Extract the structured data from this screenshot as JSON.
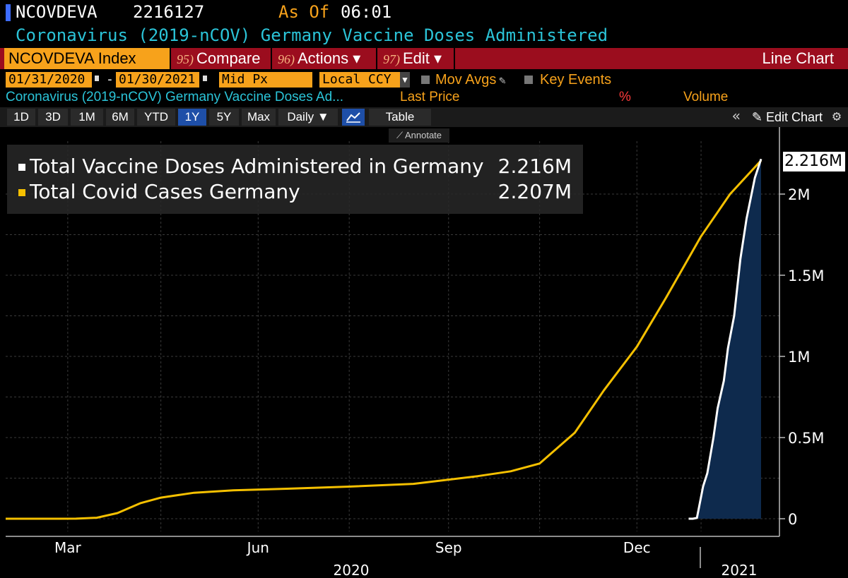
{
  "header": {
    "ticker": "NCOVDEVA",
    "last_value": "2216127",
    "as_of_label": "As Of",
    "time": "06:01",
    "subtitle": "Coronavirus (2019-nCOV) Germany Vaccine Doses Administered"
  },
  "toolbar": {
    "index_field": "NCOVDEVA Index",
    "compare": {
      "num": "95)",
      "label": "Compare"
    },
    "actions": {
      "num": "96)",
      "label": "Actions ▾"
    },
    "edit": {
      "num": "97)",
      "label": "Edit ▾"
    },
    "chart_type": "Line Chart"
  },
  "date_row": {
    "start_date": "01/31/2020",
    "dash": "-",
    "end_date": "01/30/2021",
    "price_field": "Mid Px",
    "currency": "Local CCY",
    "mov_avgs": "Mov Avgs",
    "key_events": "Key Events"
  },
  "series_header": {
    "security": "Coronavirus (2019-nCOV) Germany Vaccine Doses Ad...",
    "last_price": "Last Price",
    "pct": "%",
    "volume": "Volume"
  },
  "tabs": [
    "1D",
    "3D",
    "1M",
    "6M",
    "YTD",
    "1Y",
    "5Y",
    "Max",
    "Daily ▼",
    "",
    "Table"
  ],
  "active_tab": "1Y",
  "edit_chart": "Edit Chart",
  "annotate": "Annotate",
  "legend": [
    {
      "label": "Total Vaccine Doses Administered in Germany",
      "value": "2.216M",
      "color": "#ffffff"
    },
    {
      "label": "Total Covid Cases Germany",
      "value": "2.207M",
      "color": "#f5c000"
    }
  ],
  "last_flag": "2.216M",
  "chart_data": {
    "type": "line",
    "x_axis": {
      "ticks": [
        "Mar",
        "Jun",
        "Sep",
        "Dec"
      ],
      "years": [
        "2020",
        "2021"
      ]
    },
    "y_axis": {
      "ticks": [
        "0",
        "0.5M",
        "1M",
        "1.5M",
        "2M"
      ],
      "ylim": [
        0,
        2300000
      ]
    },
    "series": [
      {
        "name": "Total Covid Cases Germany",
        "color": "#f5c000",
        "points": [
          [
            "2020-01-31",
            0
          ],
          [
            "2020-02-25",
            0
          ],
          [
            "2020-03-05",
            500
          ],
          [
            "2020-03-15",
            6000
          ],
          [
            "2020-03-25",
            35000
          ],
          [
            "2020-04-05",
            95000
          ],
          [
            "2020-04-15",
            130000
          ],
          [
            "2020-05-01",
            160000
          ],
          [
            "2020-05-20",
            175000
          ],
          [
            "2020-06-15",
            185000
          ],
          [
            "2020-07-15",
            198000
          ],
          [
            "2020-08-15",
            215000
          ],
          [
            "2020-09-15",
            262000
          ],
          [
            "2020-10-01",
            292000
          ],
          [
            "2020-10-15",
            340000
          ],
          [
            "2020-11-01",
            530000
          ],
          [
            "2020-11-15",
            790000
          ],
          [
            "2020-12-01",
            1060000
          ],
          [
            "2020-12-15",
            1360000
          ],
          [
            "2021-01-01",
            1740000
          ],
          [
            "2021-01-15",
            2000000
          ],
          [
            "2021-01-30",
            2207000
          ]
        ]
      },
      {
        "name": "Total Vaccine Doses Administered in Germany",
        "color": "#ffffff",
        "fill": "#0e2a4d",
        "points": [
          [
            "2020-12-26",
            0
          ],
          [
            "2020-12-28",
            0
          ],
          [
            "2020-12-30",
            5000
          ],
          [
            "2021-01-02",
            200000
          ],
          [
            "2021-01-04",
            280000
          ],
          [
            "2021-01-07",
            500000
          ],
          [
            "2021-01-09",
            680000
          ],
          [
            "2021-01-12",
            850000
          ],
          [
            "2021-01-14",
            1050000
          ],
          [
            "2021-01-17",
            1250000
          ],
          [
            "2021-01-20",
            1600000
          ],
          [
            "2021-01-23",
            1850000
          ],
          [
            "2021-01-27",
            2100000
          ],
          [
            "2021-01-30",
            2216127
          ]
        ]
      }
    ]
  }
}
